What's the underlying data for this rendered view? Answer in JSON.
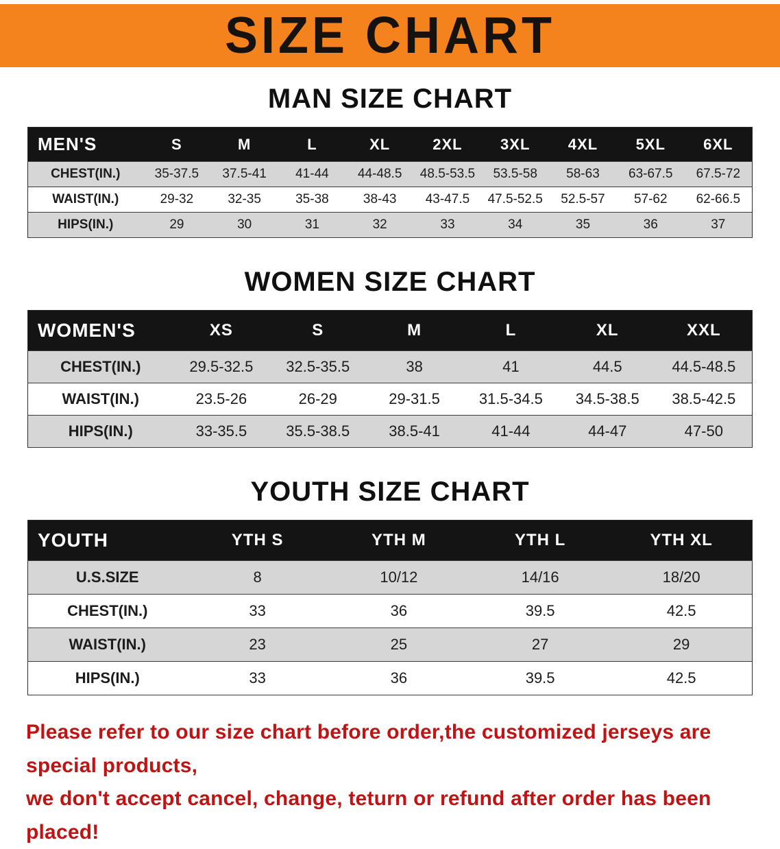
{
  "banner": {
    "title": "SIZE CHART",
    "bg_color": "#f5831d",
    "text_color": "#16120e"
  },
  "sections": [
    {
      "id": "men",
      "heading": "MAN SIZE CHART",
      "table": {
        "header_label": "MEN'S",
        "columns": [
          "S",
          "M",
          "L",
          "XL",
          "2XL",
          "3XL",
          "4XL",
          "5XL",
          "6XL"
        ],
        "rows": [
          {
            "label": "CHEST(IN.)",
            "values": [
              "35-37.5",
              "37.5-41",
              "41-44",
              "44-48.5",
              "48.5-53.5",
              "53.5-58",
              "58-63",
              "63-67.5",
              "67.5-72"
            ]
          },
          {
            "label": "WAIST(IN.)",
            "values": [
              "29-32",
              "32-35",
              "35-38",
              "38-43",
              "43-47.5",
              "47.5-52.5",
              "52.5-57",
              "57-62",
              "62-66.5"
            ]
          },
          {
            "label": "HIPS(IN.)",
            "values": [
              "29",
              "30",
              "31",
              "32",
              "33",
              "34",
              "35",
              "36",
              "37"
            ]
          }
        ]
      }
    },
    {
      "id": "women",
      "heading": "WOMEN SIZE CHART",
      "table": {
        "header_label": "WOMEN'S",
        "columns": [
          "XS",
          "S",
          "M",
          "L",
          "XL",
          "XXL"
        ],
        "rows": [
          {
            "label": "CHEST(IN.)",
            "values": [
              "29.5-32.5",
              "32.5-35.5",
              "38",
              "41",
              "44.5",
              "44.5-48.5"
            ]
          },
          {
            "label": "WAIST(IN.)",
            "values": [
              "23.5-26",
              "26-29",
              "29-31.5",
              "31.5-34.5",
              "34.5-38.5",
              "38.5-42.5"
            ]
          },
          {
            "label": "HIPS(IN.)",
            "values": [
              "33-35.5",
              "35.5-38.5",
              "38.5-41",
              "41-44",
              "44-47",
              "47-50"
            ]
          }
        ]
      }
    },
    {
      "id": "youth",
      "heading": "YOUTH SIZE CHART",
      "table": {
        "header_label": "YOUTH",
        "columns": [
          "YTH S",
          "YTH M",
          "YTH L",
          "YTH XL"
        ],
        "rows": [
          {
            "label": "U.S.SIZE",
            "values": [
              "8",
              "10/12",
              "14/16",
              "18/20"
            ]
          },
          {
            "label": "CHEST(IN.)",
            "values": [
              "33",
              "36",
              "39.5",
              "42.5"
            ]
          },
          {
            "label": "WAIST(IN.)",
            "values": [
              "23",
              "25",
              "27",
              "29"
            ]
          },
          {
            "label": "HIPS(IN.)",
            "values": [
              "33",
              "36",
              "39.5",
              "42.5"
            ]
          }
        ]
      }
    }
  ],
  "disclaimer": {
    "lines": [
      "Please refer to our size chart before order,the customized jerseys are special products,",
      "we don't accept cancel, change, teturn or refund after order has been placed!"
    ],
    "text_color": "#c01414"
  }
}
